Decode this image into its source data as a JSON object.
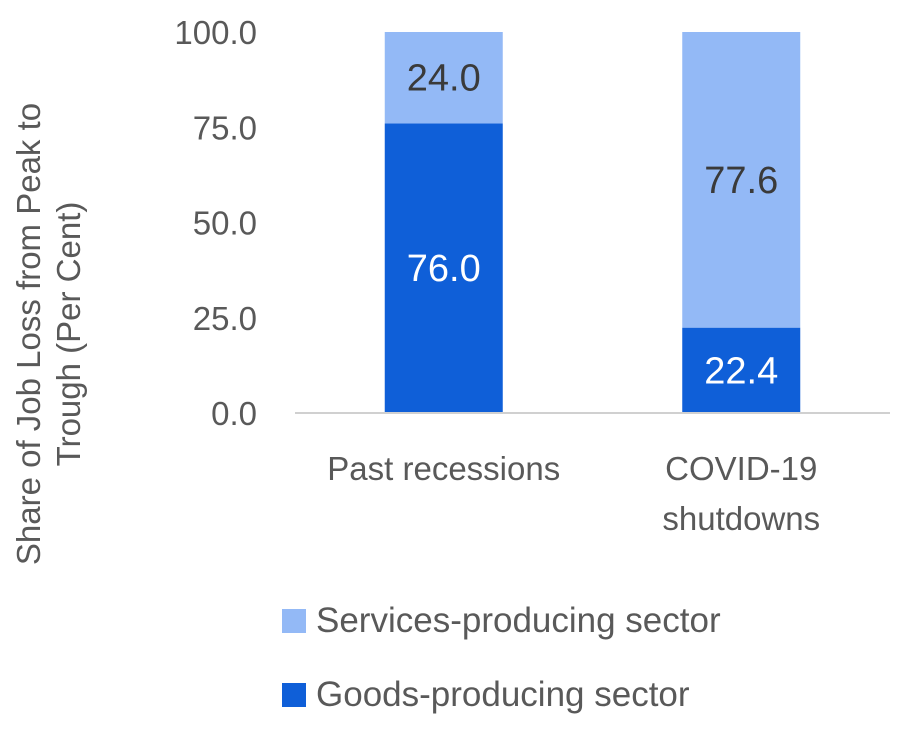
{
  "chart_data": {
    "type": "bar",
    "stacked": true,
    "categories": [
      "Past recessions",
      "COVID-19 shutdowns"
    ],
    "category_lines": [
      [
        "Past recessions"
      ],
      [
        "COVID-19",
        "shutdowns"
      ]
    ],
    "series": [
      {
        "name": "Goods-producing sector",
        "values": [
          76.0,
          22.4
        ],
        "color": "#0f5fd8",
        "label_color": "#ffffff"
      },
      {
        "name": "Services-producing sector",
        "values": [
          24.0,
          77.6
        ],
        "color": "#93b9f6",
        "label_color": "#3a3a3a"
      }
    ],
    "ylabel_lines": [
      "Share of  Job Loss  from Peak to",
      "Trough (Per Cent)"
    ],
    "ylim": [
      0,
      100
    ],
    "yticks": [
      "0.0",
      "25.0",
      "50.0",
      "75.0",
      "100.0"
    ],
    "grid": false,
    "legend_position": "bottom"
  },
  "legend": [
    {
      "label": "Services-producing sector",
      "color": "#93b9f6"
    },
    {
      "label": "Goods-producing sector",
      "color": "#0f5fd8"
    }
  ]
}
